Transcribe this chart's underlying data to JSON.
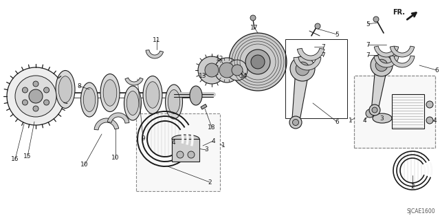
{
  "background_color": "#ffffff",
  "line_color": "#1a1a1a",
  "gray_fill": "#cccccc",
  "gray_dark": "#888888",
  "gray_light": "#eeeeee",
  "gray_med": "#aaaaaa",
  "catalog_code": "SJCAE1600",
  "fig_width": 6.4,
  "fig_height": 3.2,
  "dpi": 100
}
